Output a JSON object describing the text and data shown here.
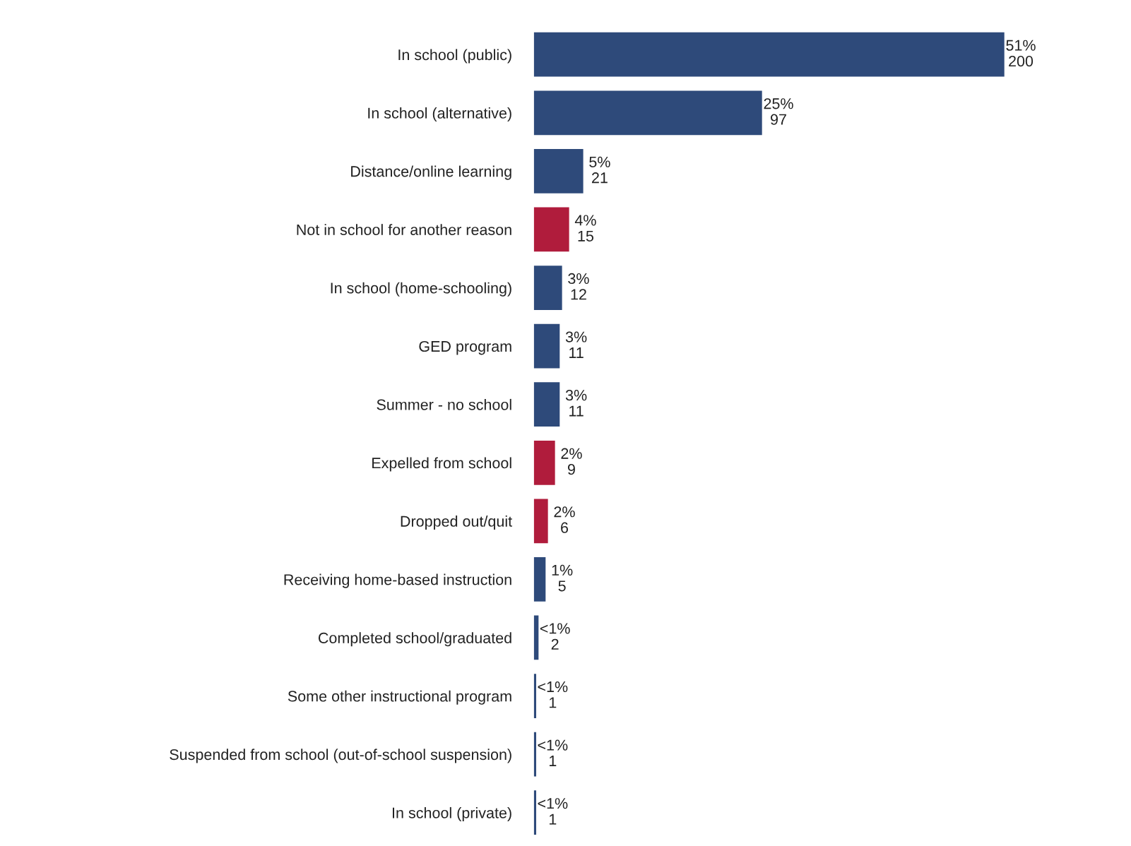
{
  "chart_data": {
    "type": "bar",
    "orientation": "horizontal",
    "categories": [
      "In school (public)",
      "In school (alternative)",
      "Distance/online learning",
      "Not in school for another reason",
      "In school (home-schooling)",
      "GED program",
      "Summer - no school",
      "Expelled from school",
      "Dropped out/quit",
      "Receiving home-based instruction",
      "Completed school/graduated",
      "Some other instructional program",
      "Suspended from school (out-of-school suspension)",
      "In school (private)"
    ],
    "values": [
      200,
      97,
      21,
      15,
      12,
      11,
      11,
      9,
      6,
      5,
      2,
      1,
      1,
      1
    ],
    "colors": [
      "#2e4a7a",
      "#2e4a7a",
      "#2e4a7a",
      "#b01c3c",
      "#2e4a7a",
      "#2e4a7a",
      "#2e4a7a",
      "#b01c3c",
      "#b01c3c",
      "#2e4a7a",
      "#2e4a7a",
      "#2e4a7a",
      "#2e4a7a",
      "#2e4a7a"
    ],
    "value_labels": [
      "51%\n200",
      "25%\n97",
      "5%\n21",
      "4%\n15",
      "3%\n12",
      "3%\n11",
      "3%\n11",
      "2%\n9",
      "2%\n6",
      "1%\n5",
      "<1%\n2",
      "<1%\n1",
      "<1%\n1",
      "<1%\n1"
    ]
  }
}
